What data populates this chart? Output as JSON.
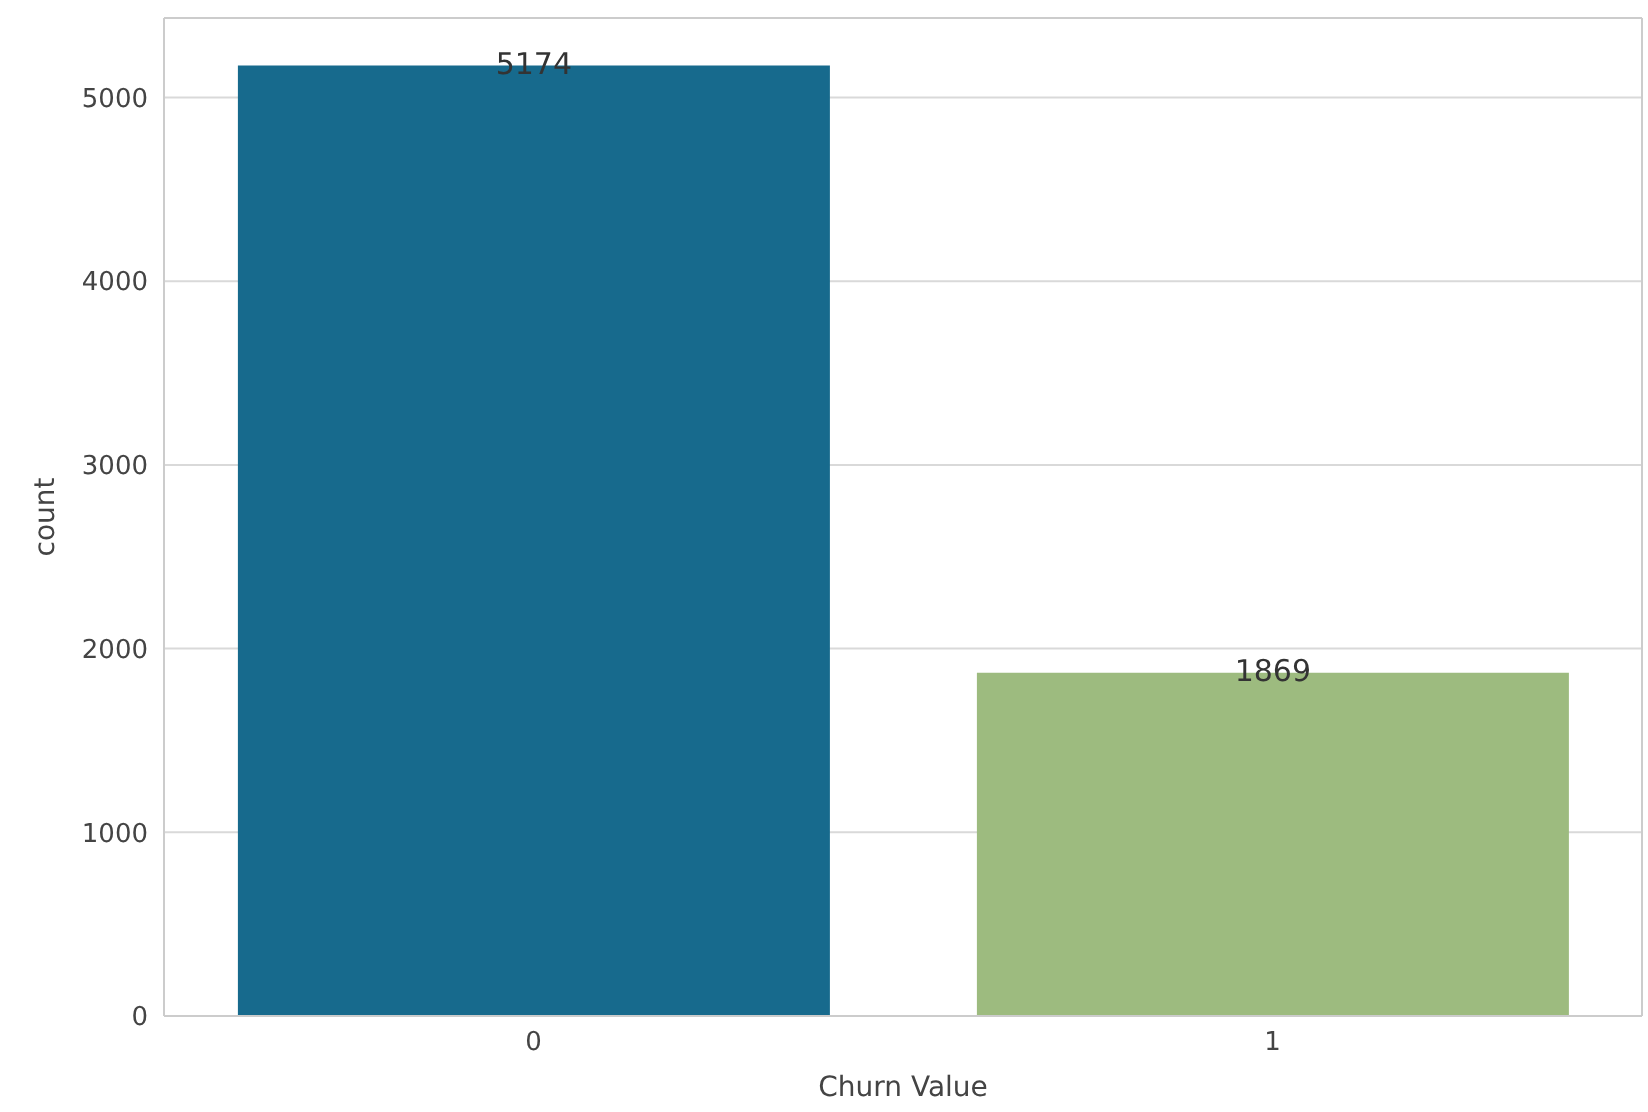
{
  "chart_data": {
    "type": "bar",
    "xlabel": "Churn Value",
    "ylabel": "count",
    "categories": [
      "0",
      "1"
    ],
    "values": [
      5174,
      1869
    ],
    "colors": [
      "#176a8d",
      "#9dbb7f"
    ],
    "ylim": [
      0,
      5433
    ],
    "yticks": [
      0,
      1000,
      2000,
      3000,
      4000,
      5000
    ],
    "grid": "y",
    "data_labels": true
  }
}
